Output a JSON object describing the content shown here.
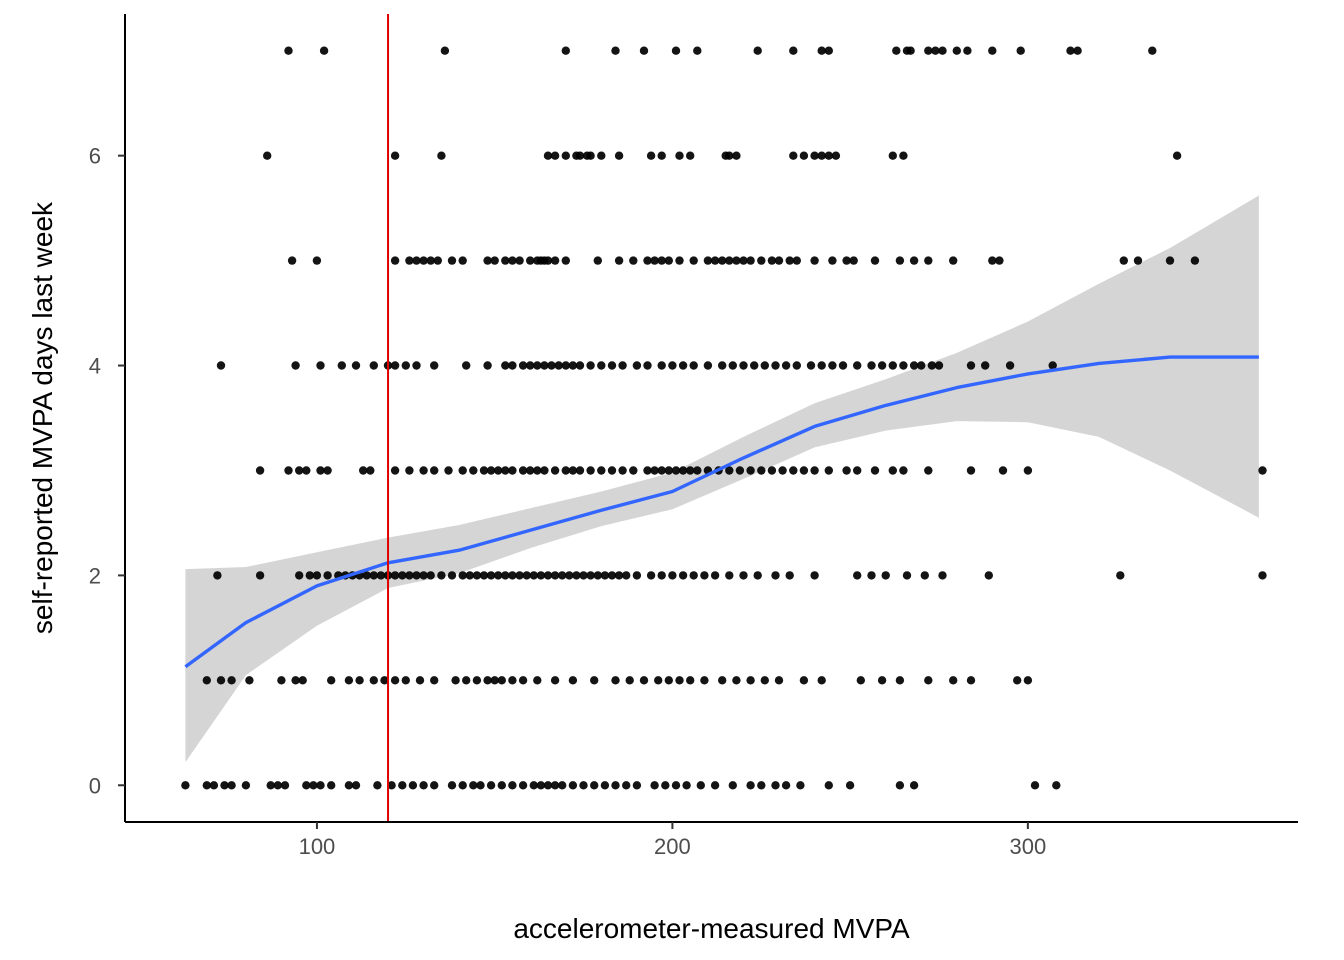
{
  "chart_data": {
    "type": "scatter",
    "title": "",
    "xlabel": "accelerometer-measured MVPA",
    "ylabel": "self-reported MVPA days last week",
    "xlim": [
      46,
      376
    ],
    "ylim": [
      -0.35,
      7.35
    ],
    "x_ticks": [
      100,
      200,
      300
    ],
    "y_ticks": [
      0,
      2,
      4,
      6
    ],
    "grid": false,
    "reference_line": {
      "orientation": "vertical",
      "x": 120,
      "color": "#e00000"
    },
    "colors": {
      "points": "#000000",
      "smooth": "#3366ff",
      "ribbon": "#d3d3d3",
      "axis": "#000000"
    },
    "points": [
      {
        "y": 7,
        "x": [
          92,
          102,
          136,
          170,
          184,
          192,
          201,
          207,
          224,
          234,
          242,
          244,
          263,
          266,
          267,
          272,
          274,
          276,
          280,
          283,
          290,
          298,
          312,
          314,
          335
        ]
      },
      {
        "y": 6,
        "x": [
          86,
          122,
          135,
          165,
          167,
          170,
          173,
          174,
          176,
          177,
          180,
          185,
          194,
          197,
          202,
          205,
          215,
          216,
          218,
          234,
          237,
          240,
          242,
          244,
          246,
          262,
          265,
          342
        ]
      },
      {
        "y": 5,
        "x": [
          93,
          100,
          122,
          126,
          128,
          130,
          132,
          134,
          138,
          141,
          148,
          150,
          153,
          155,
          157,
          160,
          162,
          163,
          164,
          165,
          167,
          170,
          179,
          185,
          189,
          193,
          195,
          197,
          199,
          202,
          206,
          210,
          212,
          214,
          216,
          218,
          220,
          222,
          225,
          228,
          230,
          233,
          235,
          240,
          245,
          249,
          251,
          257,
          264,
          268,
          272,
          279,
          290,
          292,
          327,
          331,
          340,
          347
        ]
      },
      {
        "y": 4,
        "x": [
          73,
          94,
          101,
          107,
          111,
          116,
          120,
          122,
          125,
          128,
          133,
          142,
          148,
          153,
          155,
          158,
          160,
          162,
          164,
          166,
          168,
          170,
          172,
          174,
          177,
          180,
          183,
          186,
          190,
          193,
          197,
          200,
          203,
          206,
          210,
          214,
          217,
          220,
          223,
          226,
          229,
          232,
          235,
          239,
          242,
          245,
          248,
          252,
          256,
          259,
          262,
          265,
          268,
          270,
          273,
          275,
          284,
          288,
          295,
          307
        ]
      },
      {
        "y": 3,
        "x": [
          84,
          92,
          95,
          97,
          101,
          103,
          113,
          115,
          122,
          126,
          130,
          133,
          137,
          141,
          144,
          147,
          149,
          151,
          153,
          155,
          158,
          160,
          162,
          164,
          167,
          170,
          172,
          174,
          177,
          180,
          183,
          186,
          189,
          193,
          195,
          197,
          199,
          201,
          203,
          205,
          207,
          210,
          213,
          216,
          219,
          222,
          225,
          228,
          231,
          234,
          237,
          240,
          244,
          249,
          252,
          257,
          262,
          265,
          272,
          284,
          293,
          300,
          366
        ]
      },
      {
        "y": 2,
        "x": [
          72,
          84,
          95,
          98,
          100,
          103,
          106,
          108,
          110,
          112,
          114,
          116,
          118,
          120,
          122,
          124,
          126,
          128,
          130,
          132,
          135,
          138,
          141,
          143,
          145,
          147,
          149,
          151,
          153,
          155,
          157,
          159,
          161,
          163,
          165,
          167,
          169,
          171,
          173,
          175,
          177,
          179,
          181,
          183,
          185,
          187,
          190,
          194,
          197,
          200,
          203,
          206,
          209,
          212,
          216,
          220,
          224,
          229,
          233,
          240,
          252,
          256,
          260,
          266,
          271,
          276,
          289,
          326,
          366
        ]
      },
      {
        "y": 1,
        "x": [
          69,
          73,
          76,
          81,
          90,
          94,
          96,
          104,
          109,
          112,
          116,
          119,
          122,
          125,
          129,
          133,
          139,
          142,
          145,
          148,
          150,
          152,
          155,
          158,
          162,
          167,
          172,
          178,
          184,
          188,
          192,
          196,
          199,
          202,
          205,
          209,
          214,
          218,
          222,
          226,
          230,
          237,
          242,
          253,
          259,
          264,
          272,
          279,
          284,
          297,
          300
        ]
      },
      {
        "y": 0,
        "x": [
          63,
          69,
          71,
          74,
          76,
          80,
          87,
          89,
          91,
          97,
          99,
          101,
          104,
          109,
          111,
          117,
          121,
          124,
          127,
          130,
          133,
          138,
          141,
          144,
          146,
          149,
          152,
          155,
          158,
          161,
          163,
          165,
          167,
          169,
          172,
          175,
          178,
          181,
          184,
          187,
          190,
          195,
          198,
          201,
          204,
          208,
          212,
          217,
          222,
          225,
          229,
          232,
          236,
          244,
          250,
          264,
          268,
          302,
          308
        ]
      }
    ],
    "smooth_series": {
      "x": [
        63,
        80,
        100,
        120,
        140,
        160,
        180,
        200,
        220,
        240,
        260,
        280,
        300,
        320,
        340,
        365
      ],
      "y": [
        1.13,
        1.55,
        1.9,
        2.12,
        2.24,
        2.43,
        2.62,
        2.8,
        3.12,
        3.42,
        3.62,
        3.79,
        3.92,
        4.02,
        4.08,
        4.08
      ],
      "lo": [
        0.22,
        1.05,
        1.52,
        1.88,
        2.02,
        2.26,
        2.47,
        2.63,
        2.92,
        3.22,
        3.38,
        3.47,
        3.46,
        3.32,
        3.0,
        2.55
      ],
      "hi": [
        2.06,
        2.08,
        2.22,
        2.36,
        2.48,
        2.64,
        2.8,
        2.98,
        3.32,
        3.64,
        3.87,
        4.12,
        4.42,
        4.78,
        5.12,
        5.62
      ]
    }
  }
}
